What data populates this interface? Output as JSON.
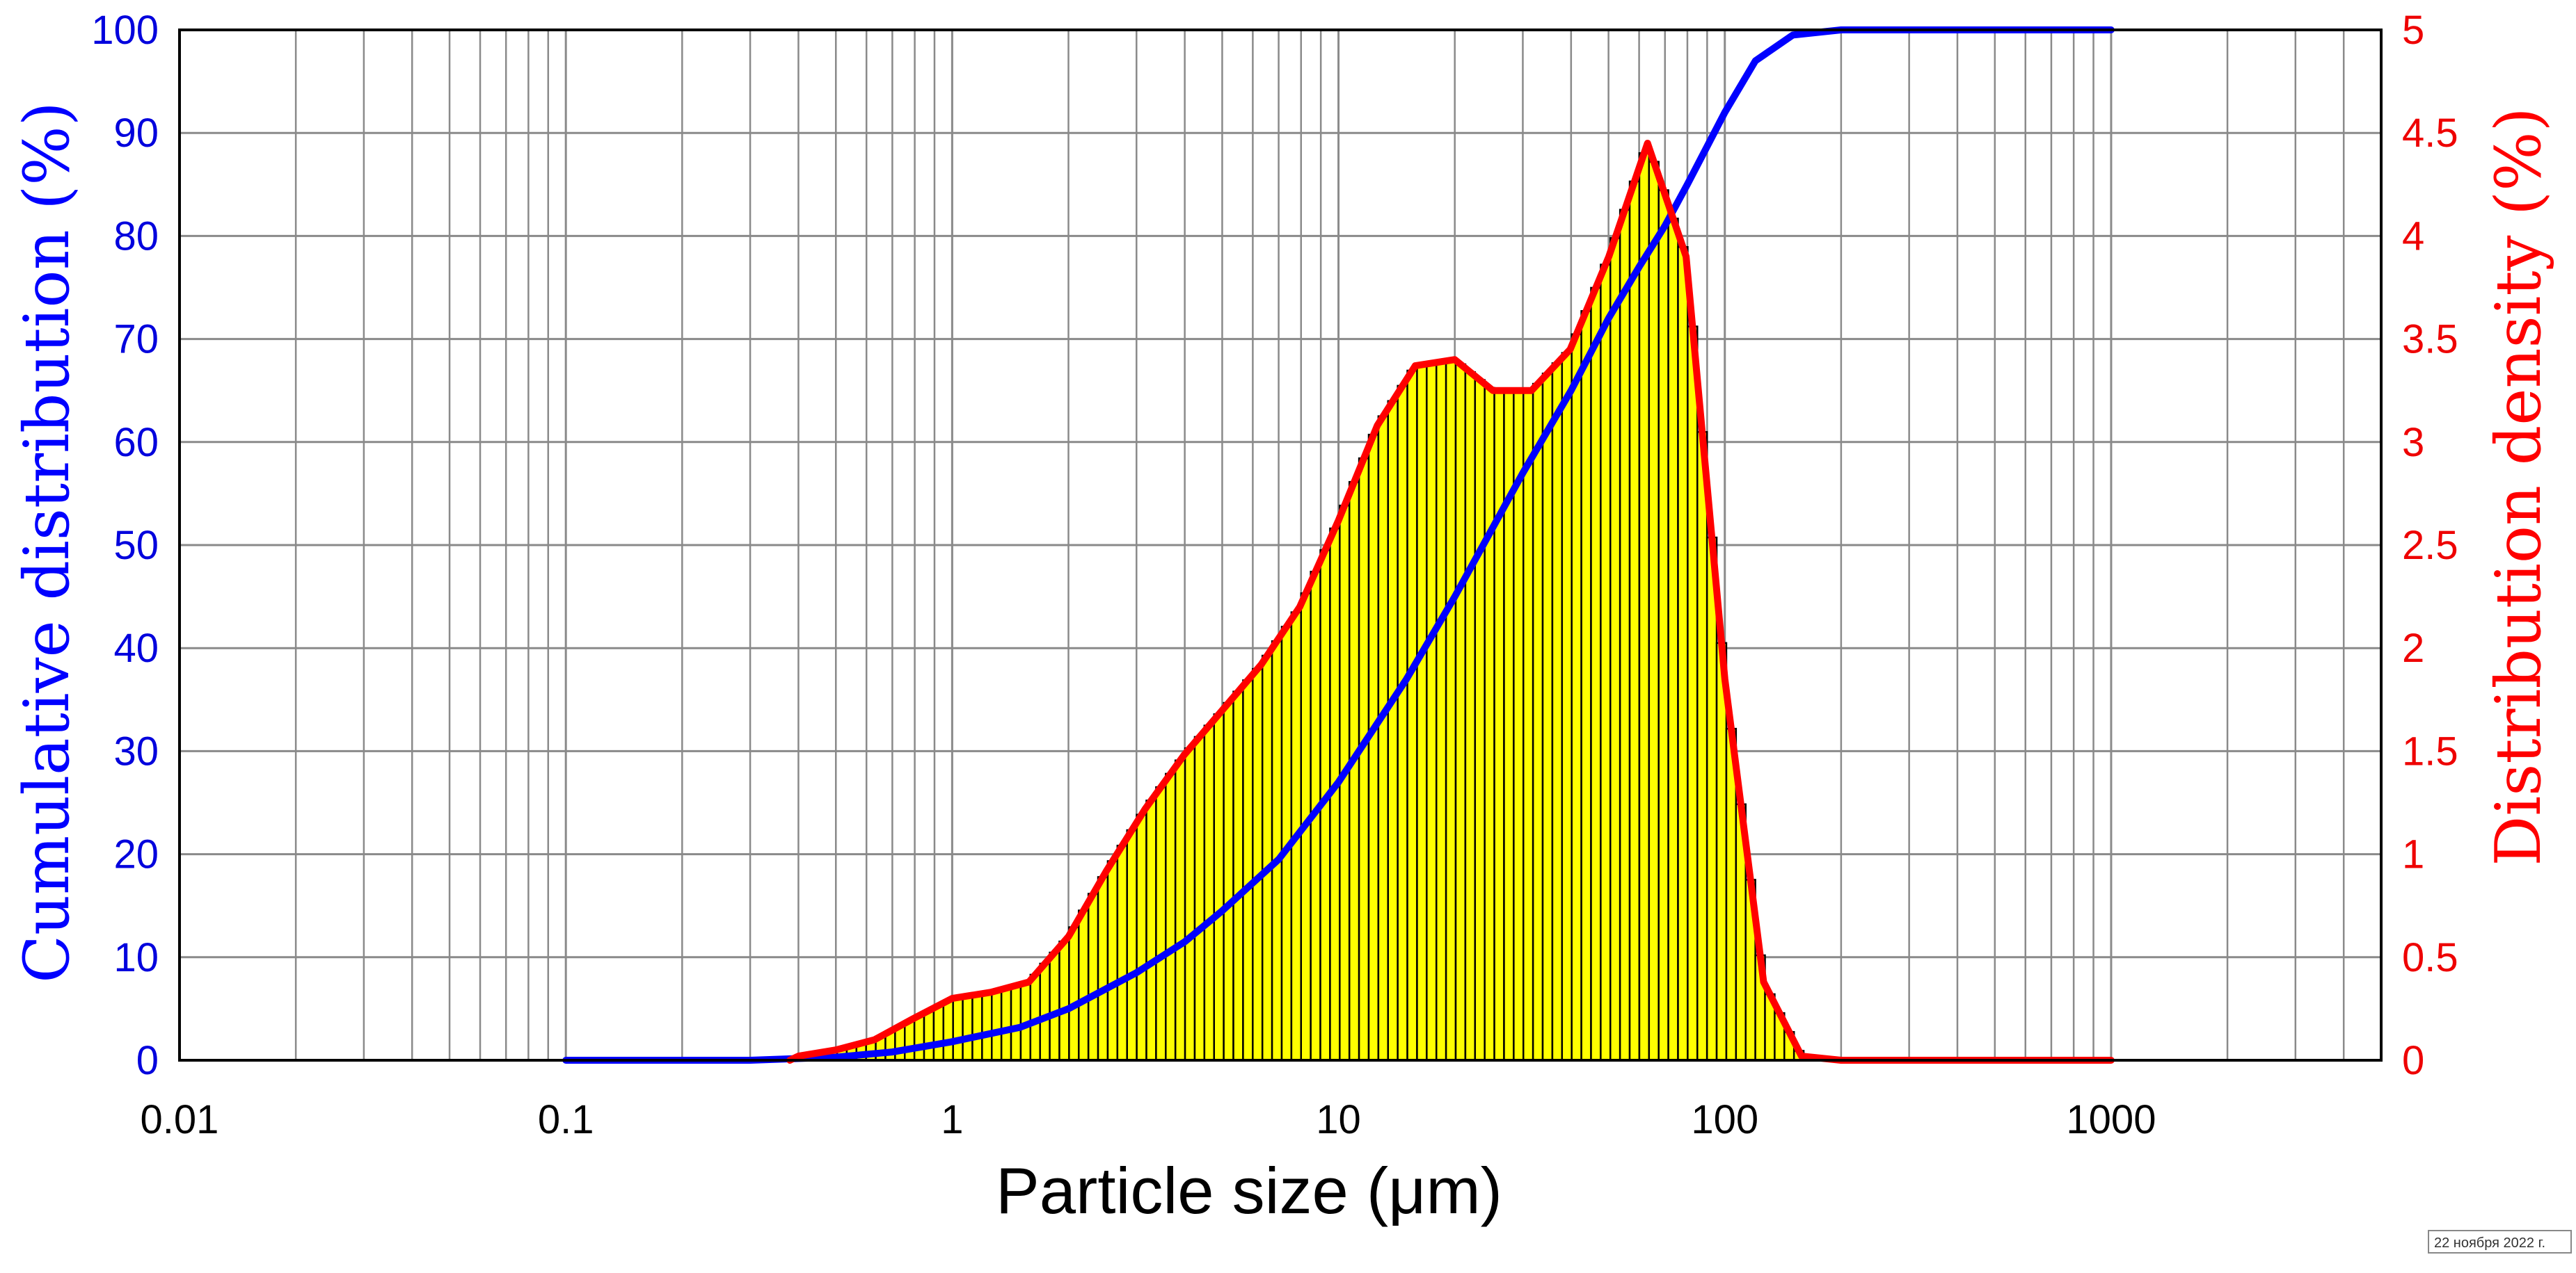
{
  "chart_data": {
    "type": "bar",
    "title": "",
    "xlabel": "Particle size (μm)",
    "ylabel_left": "Cumulative distribution (%)",
    "ylabel_right": "Distribution density (%)",
    "x_scale": "log",
    "xlim": [
      0.01,
      5000
    ],
    "ylim_left": [
      0,
      100
    ],
    "ylim_right": [
      0,
      5
    ],
    "grid": true,
    "x_tick_labels": [
      "0.01",
      "0.1",
      "1",
      "10",
      "100",
      "1000"
    ],
    "y_left_tick_labels": [
      "0",
      "10",
      "20",
      "30",
      "40",
      "50",
      "60",
      "70",
      "80",
      "90",
      "100"
    ],
    "y_right_tick_labels": [
      "0",
      "0.5",
      "1",
      "1.5",
      "2",
      "2.5",
      "3",
      "3.5",
      "4",
      "4.5",
      "5"
    ],
    "colors": {
      "bars": "#ffff00",
      "bar_edge": "#000000",
      "cumulative": "#0000ff",
      "density": "#ff0000",
      "grid": "#8a8a8a",
      "left_axis_text": "#0000dd",
      "right_axis_text": "#ee0000"
    },
    "series": [
      {
        "name": "Distribution density (%)",
        "kind": "bars+curve",
        "axis": "right",
        "x": [
          0.4,
          0.5,
          0.63,
          0.79,
          1.0,
          1.26,
          1.58,
          2.0,
          2.51,
          3.16,
          3.98,
          5.01,
          6.31,
          7.94,
          10.0,
          12.6,
          15.8,
          20.0,
          25.1,
          31.6,
          39.8,
          50.1,
          63.1,
          79.4,
          100,
          126,
          158,
          200
        ],
        "values": [
          0.02,
          0.05,
          0.1,
          0.2,
          0.3,
          0.33,
          0.38,
          0.6,
          0.92,
          1.22,
          1.48,
          1.7,
          1.92,
          2.2,
          2.62,
          3.08,
          3.37,
          3.4,
          3.25,
          3.25,
          3.45,
          3.9,
          4.45,
          3.9,
          1.85,
          0.38,
          0.02,
          0.0
        ]
      },
      {
        "name": "Cumulative distribution (%)",
        "kind": "line",
        "axis": "left",
        "x": [
          0.1,
          0.3,
          0.5,
          0.7,
          1.0,
          1.5,
          2.0,
          3.0,
          4.0,
          5.0,
          7.0,
          10.0,
          15.0,
          20.0,
          30.0,
          40.0,
          50.0,
          60.0,
          70.0,
          80.0,
          100,
          120,
          150,
          200,
          500,
          1000
        ],
        "values": [
          0,
          0,
          0.3,
          0.8,
          1.8,
          3.2,
          5,
          8.5,
          11.5,
          14.5,
          19.5,
          27,
          37,
          45,
          57,
          65,
          72,
          77,
          81,
          85,
          92,
          97,
          99.5,
          100,
          100,
          100
        ]
      }
    ]
  },
  "footer": {
    "stamp": "22 ноября 2022 г."
  }
}
